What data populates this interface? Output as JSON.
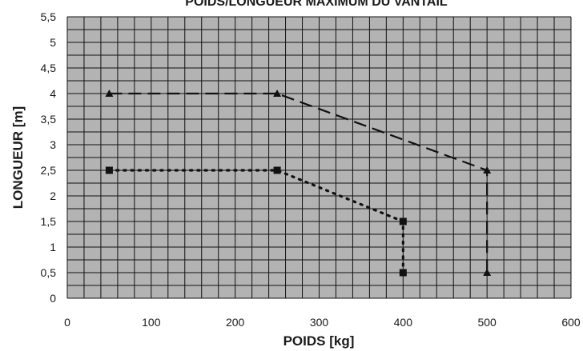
{
  "chart_data": {
    "type": "line",
    "title": "POIDS/LONGUEUR MAXIMUM DU VANTAIL",
    "xlabel": "POIDS [kg]",
    "ylabel": "LONGUEUR [m]",
    "xlim": [
      0,
      600
    ],
    "ylim": [
      0,
      5.5
    ],
    "x_ticks": [
      0,
      100,
      200,
      300,
      400,
      500,
      600
    ],
    "y_ticks": [
      0,
      0.5,
      1,
      1.5,
      2,
      2.5,
      3,
      3.5,
      4,
      4.5,
      5,
      5.5
    ],
    "y_tick_labels": [
      "0",
      "0,5",
      "1",
      "1,5",
      "2",
      "2,5",
      "3",
      "3,5",
      "4",
      "4,5",
      "5",
      "5,5"
    ],
    "grid": true,
    "plot_background": "#b3b3b3",
    "series": [
      {
        "marker": "triangle",
        "line_style": "dashed",
        "color": "#111111",
        "points": [
          [
            50,
            4
          ],
          [
            250,
            4
          ],
          [
            500,
            2.5
          ],
          [
            500,
            0.5
          ]
        ]
      },
      {
        "marker": "square",
        "line_style": "dotted",
        "color": "#111111",
        "points": [
          [
            50,
            2.5
          ],
          [
            250,
            2.5
          ],
          [
            400,
            1.5
          ],
          [
            400,
            0.5
          ]
        ]
      }
    ]
  }
}
